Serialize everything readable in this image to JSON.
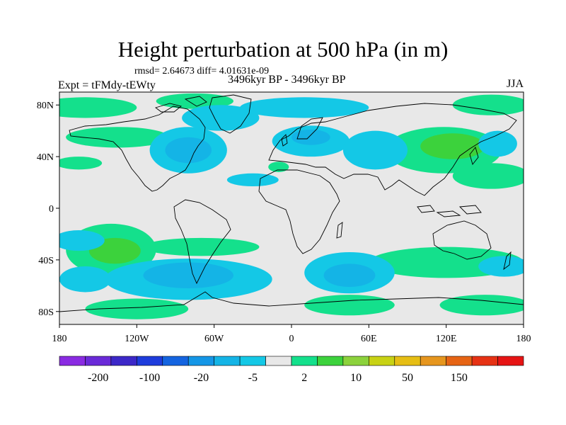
{
  "chart_data": {
    "type": "contour-map",
    "title": "Height perturbation at 500 hPa (in m)",
    "stats_text": "rmsd= 2.64673  diff= 4.01631e-09",
    "left_subtitle": "Expt = tFMdy-tEWty",
    "center_subtitle": "3496kyr BP - 3496kyr BP",
    "right_subtitle": "JJA",
    "lon_range": [
      -180,
      180
    ],
    "lat_range": [
      -90,
      90
    ],
    "lat_ticks": [
      {
        "value": 80,
        "label": "80N"
      },
      {
        "value": 40,
        "label": "40N"
      },
      {
        "value": 0,
        "label": "0"
      },
      {
        "value": -40,
        "label": "40S"
      },
      {
        "value": -80,
        "label": "80S"
      }
    ],
    "lon_ticks": [
      {
        "value": -180,
        "label": "180"
      },
      {
        "value": -120,
        "label": "120W"
      },
      {
        "value": -60,
        "label": "60W"
      },
      {
        "value": 0,
        "label": "0"
      },
      {
        "value": 60,
        "label": "60E"
      },
      {
        "value": 120,
        "label": "120E"
      },
      {
        "value": 180,
        "label": "180"
      }
    ],
    "colorbar": {
      "colors": [
        "#8a2be2",
        "#6a2ad8",
        "#3c28c8",
        "#1e3cdc",
        "#1464e0",
        "#1496e6",
        "#14b4e6",
        "#14c8e6",
        "#e8e8e8",
        "#14e08c",
        "#3cd23c",
        "#8cd23c",
        "#c8d214",
        "#e6be14",
        "#e6961e",
        "#e66414",
        "#e63214",
        "#e61414"
      ],
      "labels": [
        "-200",
        "-100",
        "-20",
        "-5",
        "2",
        "10",
        "50",
        "150"
      ]
    },
    "fields": [
      {
        "level": "+2",
        "lon": -160,
        "lat": 78,
        "rx": 40,
        "ry": 8
      },
      {
        "level": "+2",
        "lon": -75,
        "lat": 83,
        "rx": 30,
        "ry": 6
      },
      {
        "level": "+2",
        "lon": 155,
        "lat": 80,
        "rx": 30,
        "ry": 8
      },
      {
        "level": "+2",
        "lon": -165,
        "lat": 35,
        "rx": 18,
        "ry": 5
      },
      {
        "level": "+2",
        "lon": -135,
        "lat": 55,
        "rx": 40,
        "ry": 8
      },
      {
        "level": "+2",
        "lon": -10,
        "lat": 32,
        "rx": 8,
        "ry": 4
      },
      {
        "level": "+2",
        "lon": 118,
        "lat": 45,
        "rx": 45,
        "ry": 18
      },
      {
        "level": "+2",
        "lon": 155,
        "lat": 25,
        "rx": 30,
        "ry": 10
      },
      {
        "level": "+10",
        "lon": 125,
        "lat": 48,
        "rx": 25,
        "ry": 10
      },
      {
        "level": "+2",
        "lon": -140,
        "lat": -32,
        "rx": 35,
        "ry": 20
      },
      {
        "level": "+10",
        "lon": -137,
        "lat": -33,
        "rx": 20,
        "ry": 10
      },
      {
        "level": "+10",
        "lon": -137,
        "lat": -35,
        "rx": 8,
        "ry": 5
      },
      {
        "level": "+2",
        "lon": -70,
        "lat": -30,
        "rx": 45,
        "ry": 7
      },
      {
        "level": "+2",
        "lon": 120,
        "lat": -42,
        "rx": 60,
        "ry": 12
      },
      {
        "level": "+2",
        "lon": 150,
        "lat": -75,
        "rx": 35,
        "ry": 8
      },
      {
        "level": "+2",
        "lon": 45,
        "lat": -75,
        "rx": 35,
        "ry": 8
      },
      {
        "level": "+2",
        "lon": -120,
        "lat": -78,
        "rx": 40,
        "ry": 8
      },
      {
        "level": "-2",
        "lon": -55,
        "lat": 70,
        "rx": 30,
        "ry": 10
      },
      {
        "level": "-2",
        "lon": -80,
        "lat": 45,
        "rx": 30,
        "ry": 18
      },
      {
        "level": "-5",
        "lon": -80,
        "lat": 45,
        "rx": 18,
        "ry": 10
      },
      {
        "level": "-2",
        "lon": -30,
        "lat": 22,
        "rx": 20,
        "ry": 5
      },
      {
        "level": "-2",
        "lon": 15,
        "lat": 52,
        "rx": 30,
        "ry": 12
      },
      {
        "level": "-5",
        "lon": 15,
        "lat": 55,
        "rx": 15,
        "ry": 6
      },
      {
        "level": "-2",
        "lon": 10,
        "lat": 78,
        "rx": 50,
        "ry": 8
      },
      {
        "level": "-2",
        "lon": 65,
        "lat": 45,
        "rx": 25,
        "ry": 15
      },
      {
        "level": "-2",
        "lon": 160,
        "lat": 50,
        "rx": 15,
        "ry": 10
      },
      {
        "level": "-2",
        "lon": -165,
        "lat": -25,
        "rx": 20,
        "ry": 8
      },
      {
        "level": "-2",
        "lon": -80,
        "lat": -55,
        "rx": 65,
        "ry": 16
      },
      {
        "level": "-5",
        "lon": -80,
        "lat": -52,
        "rx": 35,
        "ry": 10
      },
      {
        "level": "-2",
        "lon": 45,
        "lat": -50,
        "rx": 35,
        "ry": 16
      },
      {
        "level": "-5",
        "lon": 45,
        "lat": -52,
        "rx": 20,
        "ry": 9
      },
      {
        "level": "-2",
        "lon": 165,
        "lat": -45,
        "rx": 20,
        "ry": 8
      },
      {
        "level": "-2",
        "lon": -160,
        "lat": -55,
        "rx": 20,
        "ry": 10
      }
    ]
  }
}
